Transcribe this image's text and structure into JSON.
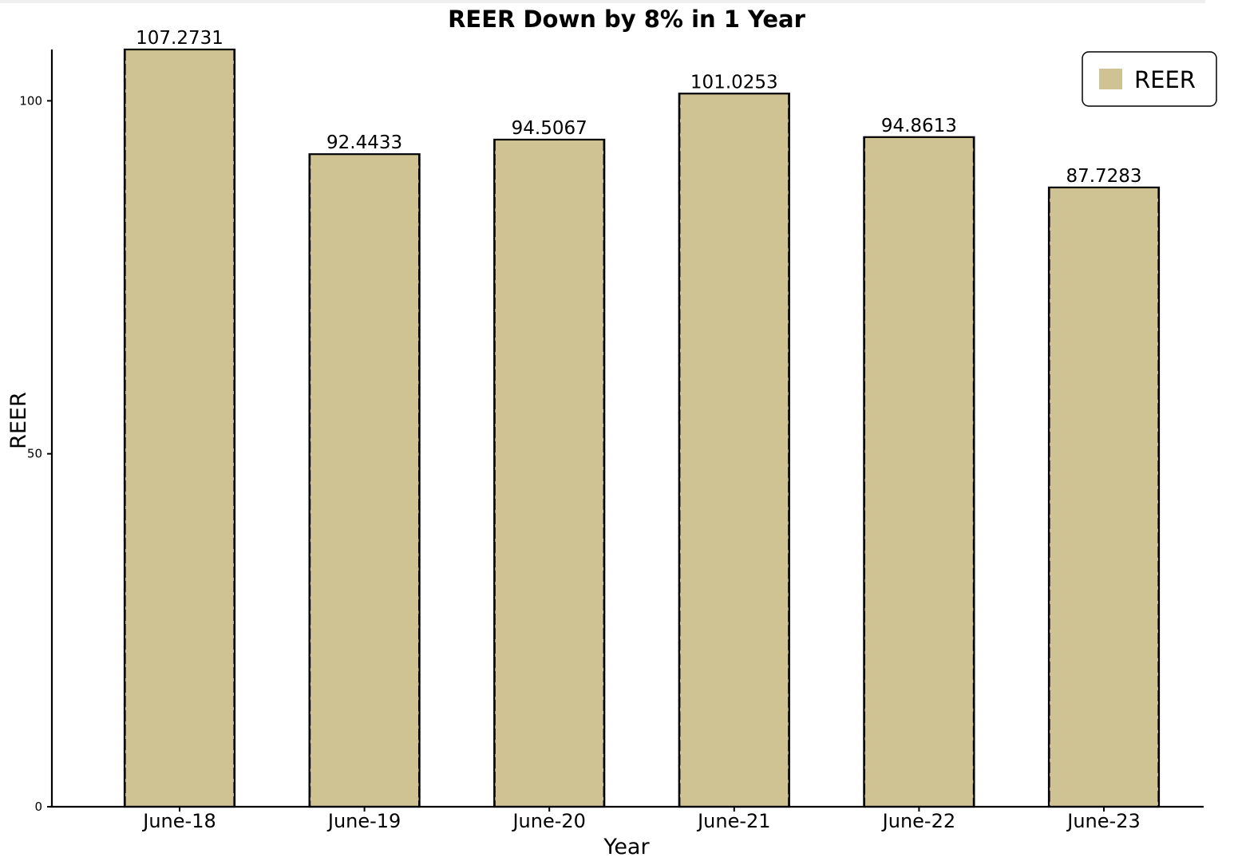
{
  "chart_data": {
    "type": "bar",
    "title": "REER Down by 8% in 1 Year",
    "xlabel": "Year",
    "ylabel": "REER",
    "categories": [
      "June-18",
      "June-19",
      "June-20",
      "June-21",
      "June-22",
      "June-23"
    ],
    "series": [
      {
        "name": "REER",
        "values": [
          107.2731,
          92.4433,
          94.5067,
          101.0253,
          94.8613,
          87.7283
        ],
        "labels": [
          "107.2731",
          "92.4433",
          "94.5067",
          "101.0253",
          "94.8613",
          "87.7283"
        ],
        "color": "#cfc393"
      }
    ],
    "yticks": [
      0,
      50,
      100
    ],
    "ytick_labels": [
      "0",
      "50",
      "100"
    ],
    "ylim": [
      0,
      107.2731
    ],
    "grid": false,
    "legend_position": "top-right",
    "style": "xkcd"
  }
}
